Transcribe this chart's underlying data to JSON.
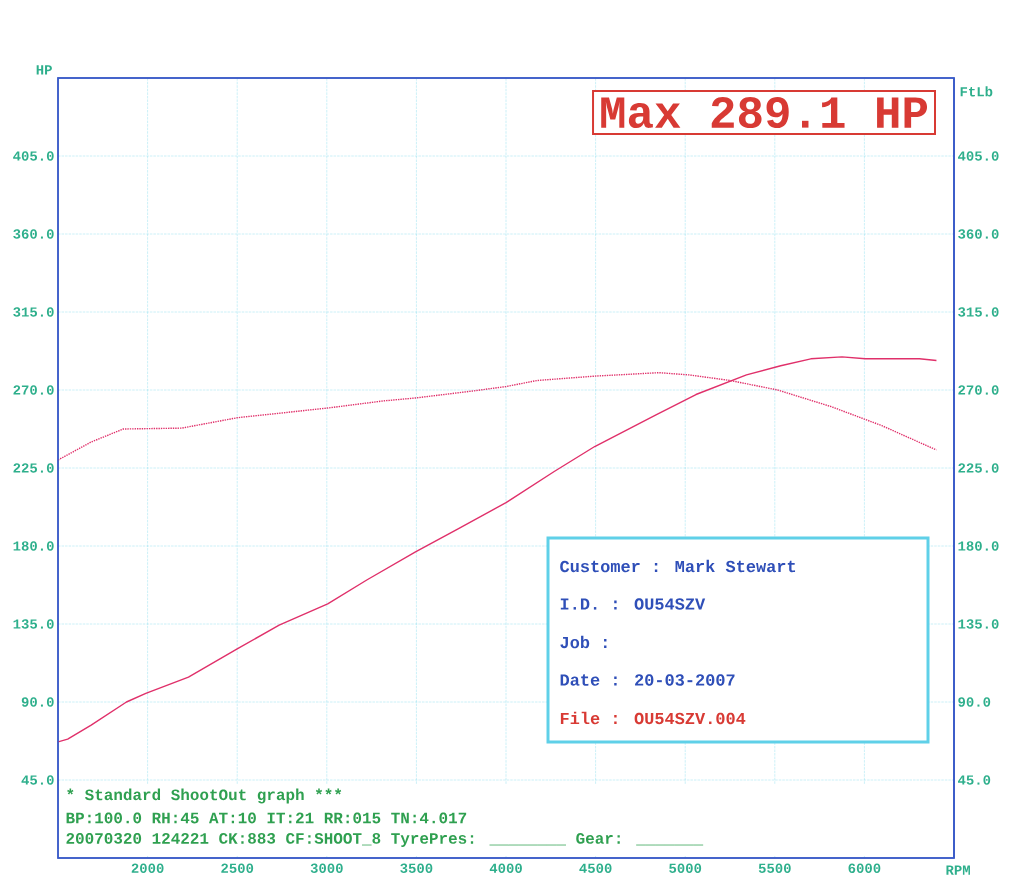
{
  "chart_data": {
    "type": "line",
    "xlabel": "RPM",
    "ylabel": "HP",
    "y2label": "FtLb",
    "annotations": [
      "Max 289.1 HP",
      "Customer : Mark Stewart",
      "I.D. : OU54SZV",
      "Job :",
      "Date : 20-03-2007",
      "File : OU54SZV.004",
      "* Standard ShootOut graph ***",
      "BP:100.0 RH:45 AT:10 IT:21 RR:015 TN:4.017",
      "20070320 124221 CK:883 CF:SHOOT_8 TyrePres: ________ Gear: _______"
    ],
    "xlim": [
      1500,
      6500
    ],
    "xticks": [
      2000,
      2500,
      3000,
      3500,
      4000,
      4500,
      5000,
      5500,
      6000
    ],
    "ylim": [
      0,
      450
    ],
    "yticks": [
      {
        "value": 45,
        "label": "45.0"
      },
      {
        "value": 90,
        "label": "90.0"
      },
      {
        "value": 135,
        "label": "135.0"
      },
      {
        "value": 180,
        "label": "180.0"
      },
      {
        "value": 225,
        "label": "225.0"
      },
      {
        "value": 270,
        "label": "270.0"
      },
      {
        "value": 315,
        "label": "315.0"
      },
      {
        "value": 360,
        "label": "360.0"
      },
      {
        "value": 405,
        "label": "405.0"
      }
    ],
    "y2lim": [
      0,
      450
    ],
    "y2ticks": [
      {
        "value": 45,
        "label": "45.0"
      },
      {
        "value": 90,
        "label": "90.0"
      },
      {
        "value": 135,
        "label": "135.0"
      },
      {
        "value": 180,
        "label": "180.0"
      },
      {
        "value": 225,
        "label": "225.0"
      },
      {
        "value": 270,
        "label": "270.0"
      },
      {
        "value": 315,
        "label": "315.0"
      },
      {
        "value": 360,
        "label": "360.0"
      },
      {
        "value": 405,
        "label": "405.0"
      }
    ],
    "grid": true,
    "series": [
      {
        "color": "#e0306a",
        "line_style": "solid",
        "x": [
          1500,
          1554,
          1685,
          1882,
          1990,
          2228,
          2500,
          2734,
          3005,
          3223,
          3495,
          3730,
          4000,
          4269,
          4495,
          4837,
          5060,
          5342,
          5533,
          5701,
          5875,
          6005,
          6307,
          6402
        ],
        "values": [
          67,
          68.6,
          76.7,
          90,
          95,
          104.4,
          120.6,
          134.4,
          146.6,
          160.4,
          176.6,
          189.8,
          205,
          223,
          237.4,
          255.6,
          267.4,
          278.7,
          284,
          288,
          289.1,
          288,
          288,
          287
        ]
      },
      {
        "color": "#e0306a",
        "line_style": "dotted",
        "axis": "y2",
        "x": [
          1500,
          1685,
          1864,
          2190,
          2500,
          3005,
          3315,
          3495,
          3820,
          4000,
          4174,
          4495,
          4853,
          5022,
          5250,
          5516,
          5815,
          6098,
          6402
        ],
        "values": [
          229.6,
          240,
          247.5,
          248,
          254,
          259.6,
          263.7,
          265.4,
          269.5,
          272,
          275.5,
          278,
          280,
          278.7,
          275.5,
          270,
          260.4,
          249.4,
          235.4
        ]
      }
    ]
  }
}
